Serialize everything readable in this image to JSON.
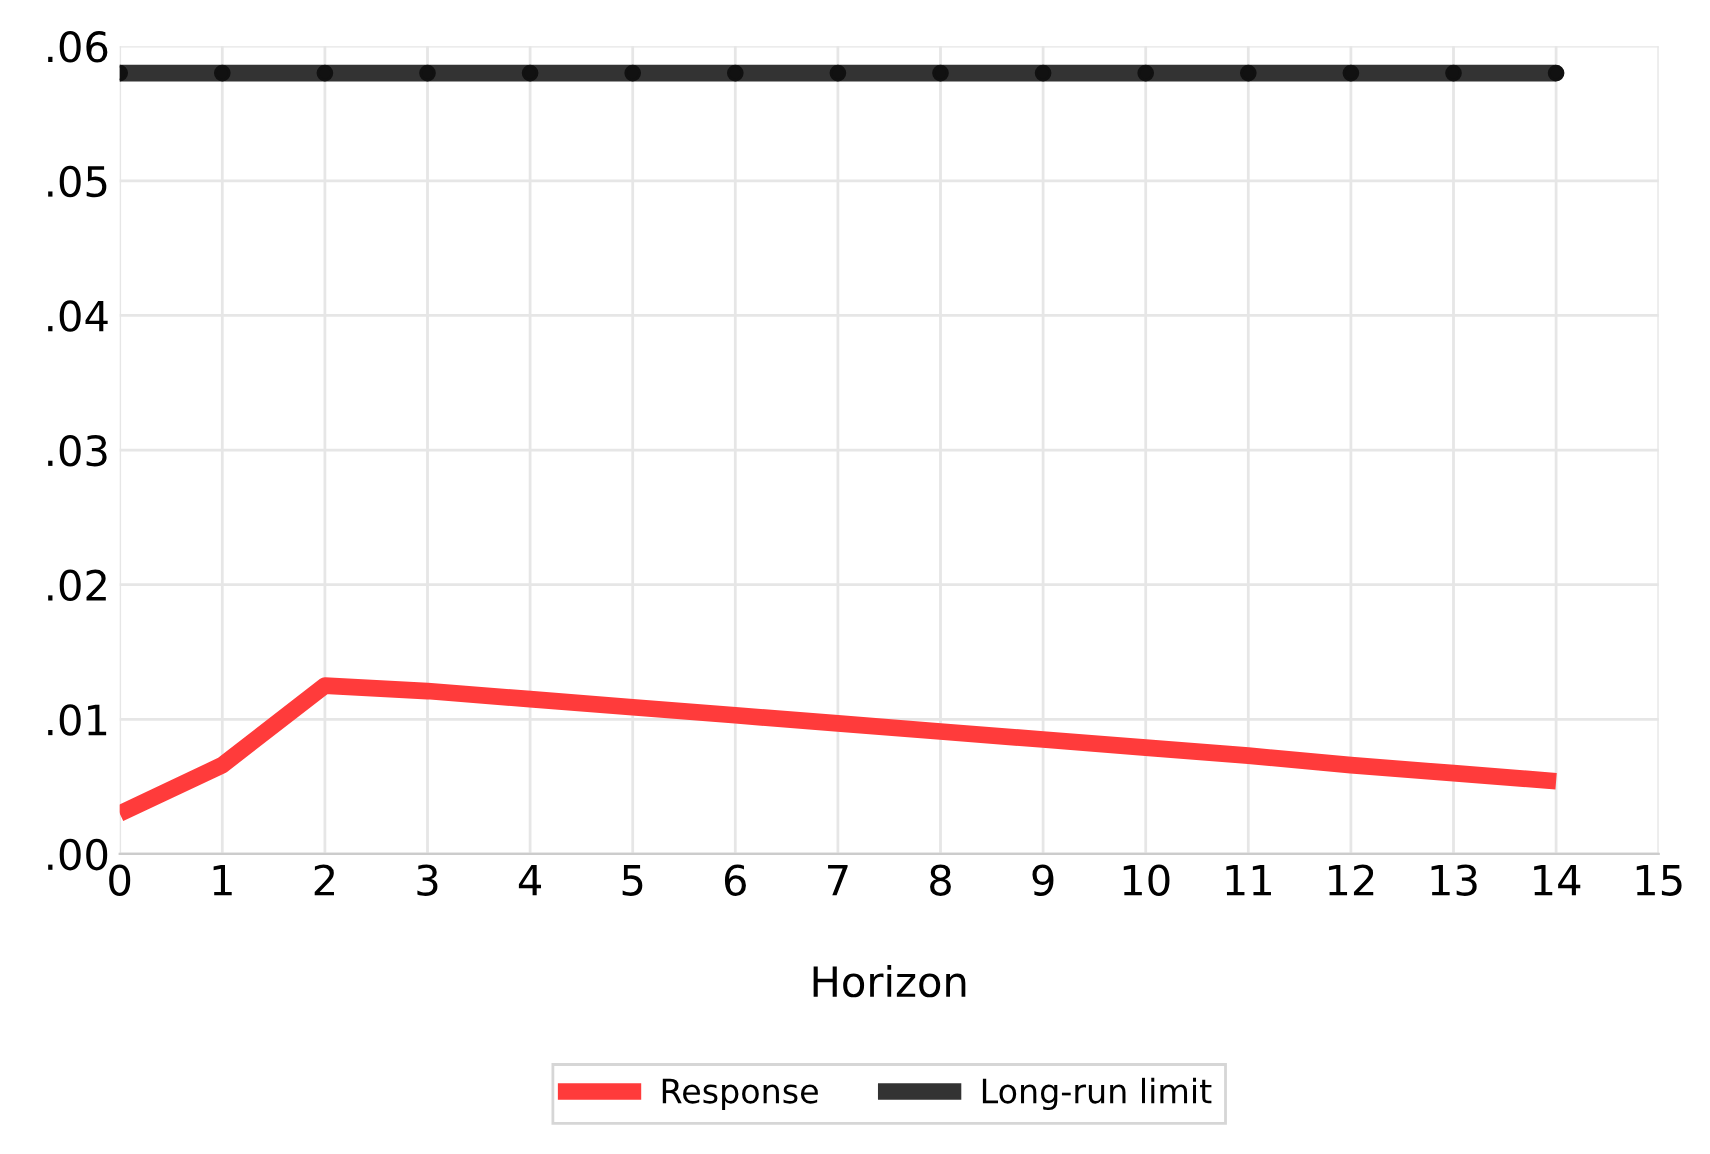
{
  "chart_data": {
    "type": "line",
    "xlabel": "Horizon",
    "x": [
      0,
      1,
      2,
      3,
      4,
      5,
      6,
      7,
      8,
      9,
      10,
      11,
      12,
      13,
      14
    ],
    "series": [
      {
        "name": "Response",
        "color": "#ff3b3b",
        "marker": "none",
        "values": [
          0.003,
          0.0066,
          0.0125,
          0.0121,
          0.0115,
          0.0109,
          0.0103,
          0.0097,
          0.0091,
          0.0085,
          0.0079,
          0.0073,
          0.0066,
          0.006,
          0.0054
        ]
      },
      {
        "name": "Long-run limit",
        "color": "#333333",
        "marker": "circle",
        "x": [
          0,
          1,
          2,
          3,
          4,
          5,
          6,
          7,
          8,
          9,
          10,
          11,
          12,
          13,
          14
        ],
        "values": [
          0.058,
          0.058,
          0.058,
          0.058,
          0.058,
          0.058,
          0.058,
          0.058,
          0.058,
          0.058,
          0.058,
          0.058,
          0.058,
          0.058,
          0.058
        ]
      }
    ],
    "xlim": [
      0,
      15
    ],
    "xticks": [
      0,
      1,
      2,
      3,
      4,
      5,
      6,
      7,
      8,
      9,
      10,
      11,
      12,
      13,
      14,
      15
    ],
    "ylim": [
      0,
      0.06
    ],
    "yticks": [
      {
        "value": 0,
        "label": ".00"
      },
      {
        "value": 0.01,
        "label": ".01"
      },
      {
        "value": 0.02,
        "label": ".02"
      },
      {
        "value": 0.03,
        "label": ".03"
      },
      {
        "value": 0.04,
        "label": ".04"
      },
      {
        "value": 0.05,
        "label": ".05"
      },
      {
        "value": 0.06,
        "label": ".06"
      }
    ],
    "grid": true,
    "legend": "bottom",
    "line_style": "solid"
  }
}
